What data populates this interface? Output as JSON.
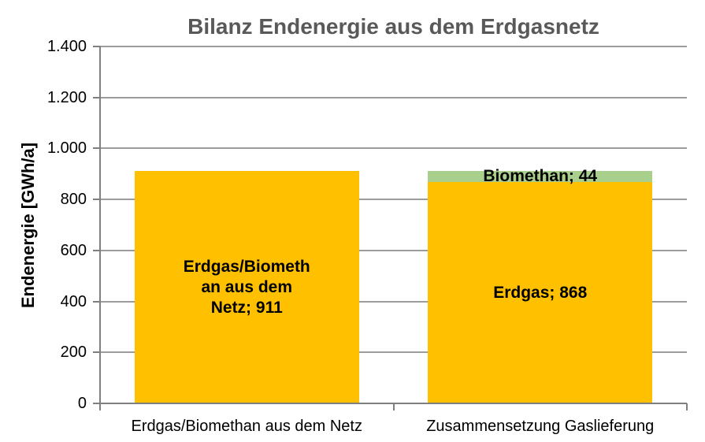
{
  "chart_data": {
    "type": "bar",
    "stacked": true,
    "title": "Bilanz Endenergie aus dem Erdgasnetz",
    "xlabel": "",
    "ylabel": "Endenergie [GWh/a]",
    "ylim": [
      0,
      1400
    ],
    "y_ticks": [
      0,
      200,
      400,
      600,
      800,
      1000,
      1200,
      1400
    ],
    "y_tick_labels": [
      "0",
      "200",
      "400",
      "600",
      "800",
      "1.000",
      "1.200",
      "1.400"
    ],
    "grid": true,
    "legend": false,
    "categories": [
      "Erdgas/Biomethan aus dem Netz",
      "Zusammensetzung Gaslieferung"
    ],
    "bars": [
      {
        "category": "Erdgas/Biomethan aus dem Netz",
        "segments": [
          {
            "name": "Erdgas/Biomethan aus dem Netz",
            "value": 911,
            "label": "Erdgas/Biometh\nan aus dem\nNetz; 911",
            "color": "#FFC000"
          }
        ]
      },
      {
        "category": "Zusammensetzung Gaslieferung",
        "segments": [
          {
            "name": "Erdgas",
            "value": 868,
            "label": "Erdgas; 868",
            "color": "#FFC000"
          },
          {
            "name": "Biomethan",
            "value": 44,
            "label": "Biomethan; 44",
            "color": "#A9CF8D"
          }
        ]
      }
    ],
    "colors": {
      "erdgas": "#FFC000",
      "biomethan": "#A9CF8D",
      "axis": "#7f7f7f",
      "gridline": "#9c9c9c",
      "title_text": "#595959",
      "label_text": "#000000"
    }
  }
}
